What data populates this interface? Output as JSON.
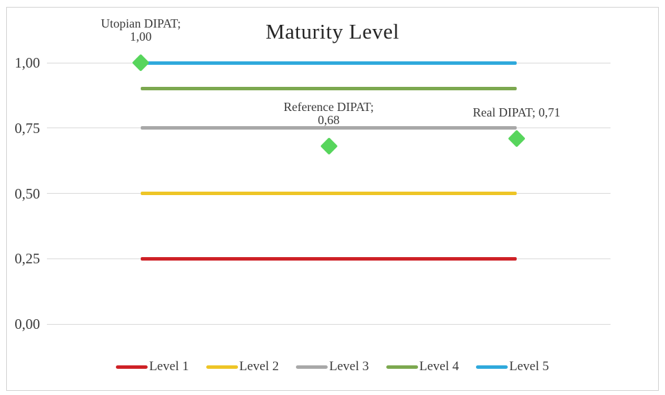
{
  "chart_data": {
    "type": "line",
    "title": "Maturity Level",
    "x_categories": [
      "",
      "",
      ""
    ],
    "xlabel": "",
    "ylabel": "",
    "ylim": [
      0,
      1
    ],
    "yticks": [
      "1,00",
      "0,75",
      "0,50",
      "0,25",
      "0,00"
    ],
    "ytick_values": [
      1.0,
      0.75,
      0.5,
      0.25,
      0.0
    ],
    "grid": true,
    "legend_position": "bottom",
    "series": [
      {
        "name": "Level 1",
        "values": [
          0.25,
          0.25,
          0.25
        ],
        "color": "#ce2126"
      },
      {
        "name": "Level 2",
        "values": [
          0.5,
          0.5,
          0.5
        ],
        "color": "#eec526"
      },
      {
        "name": "Level 3",
        "values": [
          0.75,
          0.75,
          0.75
        ],
        "color": "#a8a8a8"
      },
      {
        "name": "Level 4",
        "values": [
          0.9,
          0.9,
          0.9
        ],
        "color": "#7ca84f"
      },
      {
        "name": "Level 5",
        "values": [
          1.0,
          1.0,
          1.0
        ],
        "color": "#2fa9dc"
      }
    ],
    "points": [
      {
        "name": "Utopian DIPAT",
        "value": 1.0,
        "value_label": "1,00",
        "label_lines": [
          "Utopian DIPAT;",
          "1,00"
        ]
      },
      {
        "name": "Reference DIPAT",
        "value": 0.68,
        "value_label": "0,68",
        "label_lines": [
          "Reference DIPAT;",
          "0,68"
        ]
      },
      {
        "name": "Real DIPAT",
        "value": 0.71,
        "value_label": "0,71",
        "label_lines": [
          "Real DIPAT; 0,71"
        ]
      }
    ],
    "marker": {
      "shape": "diamond",
      "color": "#57d55c"
    }
  },
  "colors": {
    "gridline": "#d9d9d9",
    "frame_border": "#d2d2d2",
    "text": "#3b3b3b",
    "title_text": "#262626",
    "background": "#ffffff"
  }
}
